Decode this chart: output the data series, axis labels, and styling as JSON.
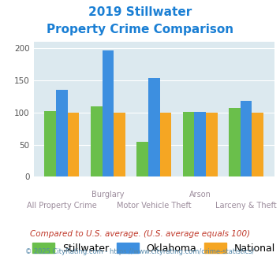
{
  "title_line1": "2019 Stillwater",
  "title_line2": "Property Crime Comparison",
  "title_color": "#1a7fd4",
  "categories": [
    "All Property Crime",
    "Burglary",
    "Motor Vehicle Theft",
    "Arson",
    "Larceny & Theft"
  ],
  "top_labels": [
    "",
    "Burglary",
    "",
    "Arson",
    ""
  ],
  "bottom_labels": [
    "All Property Crime",
    "",
    "Motor Vehicle Theft",
    "",
    "Larceny & Theft"
  ],
  "stillwater": [
    102,
    110,
    54,
    101,
    107
  ],
  "oklahoma": [
    135,
    196,
    153,
    101,
    118
  ],
  "national": [
    100,
    100,
    100,
    100,
    100
  ],
  "stillwater_color": "#6abf4b",
  "oklahoma_color": "#3d8fe0",
  "national_color": "#f5a623",
  "ylim": [
    0,
    210
  ],
  "yticks": [
    0,
    50,
    100,
    150,
    200
  ],
  "background_color": "#dce9ef",
  "footnote1": "Compared to U.S. average. (U.S. average equals 100)",
  "footnote2": "© 2025 CityRating.com - https://www.cityrating.com/crime-statistics/",
  "footnote1_color": "#c0392b",
  "footnote2_color": "#5588aa"
}
